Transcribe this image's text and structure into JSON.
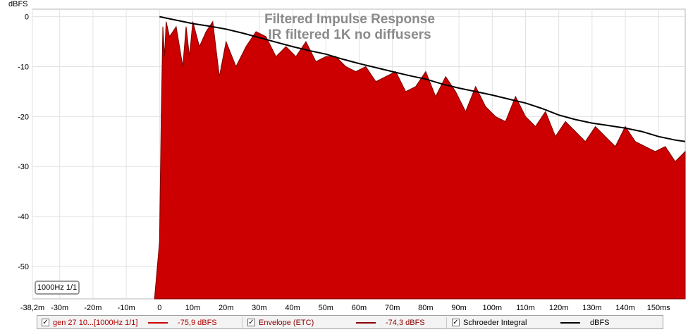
{
  "chart_data": {
    "type": "line",
    "title": "Filtered Impulse Response",
    "subtitle": "IR filtered 1K no diffusers",
    "ylabel": "dBFS",
    "xlabel": "",
    "xlim": [
      -38.2,
      158
    ],
    "ylim": [
      -56.5,
      1.5
    ],
    "x_unit": "ms",
    "x_ticks": [
      {
        "value": -38.2,
        "label": "-38,2m"
      },
      {
        "value": -30,
        "label": "-30m"
      },
      {
        "value": -20,
        "label": "-20m"
      },
      {
        "value": -10,
        "label": "-10m"
      },
      {
        "value": 0,
        "label": "0"
      },
      {
        "value": 10,
        "label": "10m"
      },
      {
        "value": 20,
        "label": "20m"
      },
      {
        "value": 30,
        "label": "30m"
      },
      {
        "value": 40,
        "label": "40m"
      },
      {
        "value": 50,
        "label": "50m"
      },
      {
        "value": 60,
        "label": "60m"
      },
      {
        "value": 70,
        "label": "70m"
      },
      {
        "value": 80,
        "label": "80m"
      },
      {
        "value": 90,
        "label": "90m"
      },
      {
        "value": 100,
        "label": "100m"
      },
      {
        "value": 110,
        "label": "110m"
      },
      {
        "value": 120,
        "label": "120m"
      },
      {
        "value": 130,
        "label": "130m"
      },
      {
        "value": 140,
        "label": "140m"
      },
      {
        "value": 150,
        "label": "150ms"
      }
    ],
    "y_ticks": [
      0,
      -10,
      -20,
      -30,
      -40,
      -50
    ],
    "grid": true,
    "legend_position": "bottom",
    "series": [
      {
        "name": "gen 27 10...[1000Hz 1/1]",
        "value_label": "-75,9 dBFS",
        "color": "#cc0000",
        "style": "filled-area",
        "x": [
          -1.5,
          0,
          0.5,
          1,
          1.5,
          2,
          3,
          4,
          5,
          6,
          7,
          8,
          9,
          10,
          12,
          14,
          16,
          18,
          20,
          23,
          26,
          29,
          32,
          35,
          38,
          41,
          44,
          47,
          50,
          53,
          56,
          59,
          62,
          65,
          68,
          71,
          74,
          77,
          80,
          83,
          86,
          89,
          92,
          95,
          98,
          101,
          104,
          107,
          110,
          113,
          116,
          119,
          122,
          125,
          128,
          131,
          134,
          137,
          140,
          143,
          146,
          149,
          152,
          155,
          158
        ],
        "y": [
          -56.5,
          -45,
          -20,
          -2,
          -8,
          -1,
          -4,
          -3,
          -2,
          -6,
          -10,
          -2,
          -8,
          -1,
          -6,
          -3,
          -1,
          -12,
          -5,
          -10,
          -6,
          -3,
          -4,
          -8,
          -6,
          -8,
          -5,
          -9,
          -8,
          -8,
          -10,
          -11,
          -10,
          -13,
          -12,
          -11,
          -15,
          -14,
          -11,
          -16,
          -12,
          -15,
          -19,
          -14,
          -18,
          -20,
          -21,
          -16,
          -20,
          -22,
          -19,
          -24,
          -21,
          -23,
          -25,
          -22,
          -24,
          -26,
          -22,
          -25,
          -26,
          -27,
          -26,
          -29,
          -27
        ]
      },
      {
        "name": "Envelope (ETC)",
        "value_label": "-74,3 dBFS",
        "color": "#8b0000",
        "style": "line"
      },
      {
        "name": "Schroeder Integral",
        "value_label": "dBFS",
        "color": "#000000",
        "style": "line",
        "x": [
          0,
          5,
          10,
          15,
          20,
          25,
          30,
          35,
          40,
          45,
          50,
          55,
          60,
          65,
          70,
          75,
          80,
          85,
          90,
          95,
          100,
          105,
          110,
          115,
          120,
          125,
          130,
          135,
          140,
          145,
          150,
          155,
          158
        ],
        "y": [
          0,
          -0.7,
          -1.4,
          -1.9,
          -2.5,
          -3.3,
          -4.2,
          -5.1,
          -6.0,
          -6.8,
          -7.5,
          -8.5,
          -9.4,
          -10.2,
          -11.0,
          -11.8,
          -12.5,
          -13.5,
          -14.3,
          -15.0,
          -15.7,
          -16.5,
          -17.3,
          -18.4,
          -19.7,
          -20.6,
          -21.3,
          -21.8,
          -22.3,
          -23.0,
          -24.0,
          -24.7,
          -25.0
        ]
      }
    ]
  },
  "chip": {
    "label": "1000Hz 1/1"
  }
}
